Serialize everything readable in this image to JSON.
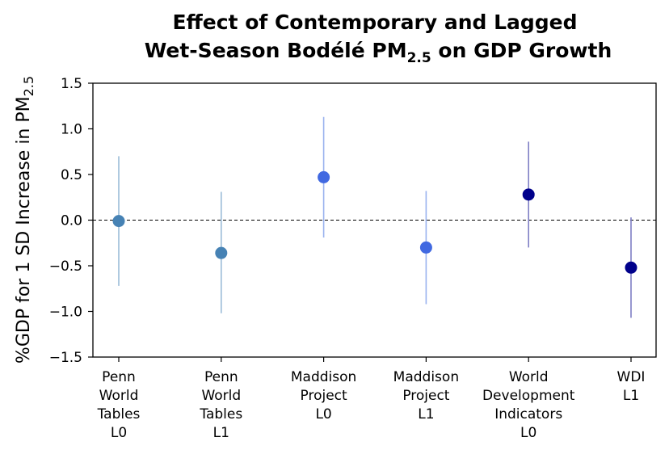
{
  "chart_data": {
    "type": "scatter",
    "title_line1": "Effect of Contemporary and Lagged",
    "title_line2_pre": "Wet-Season Bodélé PM",
    "title_line2_sub": "2.5",
    "title_line2_post": " on GDP Growth",
    "ylabel_pre": "%GDP for 1 SD Increase in PM",
    "ylabel_sub": "2.5",
    "ylim": [
      -1.5,
      1.5
    ],
    "yticks": [
      -1.5,
      -1.0,
      -0.5,
      0.0,
      0.5,
      1.0,
      1.5
    ],
    "ytick_labels": [
      "−1.5",
      "−1.0",
      "−0.5",
      "0.0",
      "0.5",
      "1.0",
      "1.5"
    ],
    "zero_line": true,
    "categories": [
      [
        "Penn",
        "World",
        "Tables",
        "L0"
      ],
      [
        "Penn",
        "World",
        "Tables",
        "L1"
      ],
      [
        "Maddison",
        "Project",
        "L0"
      ],
      [
        "Maddison",
        "Project",
        "L1"
      ],
      [
        "World",
        "Development",
        "Indicators",
        "L0"
      ],
      [
        "WDI",
        "L1"
      ]
    ],
    "estimates": [
      -0.01,
      -0.36,
      0.47,
      -0.3,
      0.28,
      -0.52
    ],
    "ci_low": [
      -0.72,
      -1.02,
      -0.19,
      -0.92,
      -0.3,
      -1.07
    ],
    "ci_high": [
      0.7,
      0.31,
      1.13,
      0.32,
      0.86,
      0.03
    ],
    "colors": [
      "#4682b4",
      "#4682b4",
      "#4169e1",
      "#4169e1",
      "#00008b",
      "#00008b"
    ],
    "ci_colors": [
      "#9bbcd8",
      "#9bbcd8",
      "#9ab2ef",
      "#9ab2ef",
      "#7f7fc5",
      "#7f7fc5"
    ]
  }
}
